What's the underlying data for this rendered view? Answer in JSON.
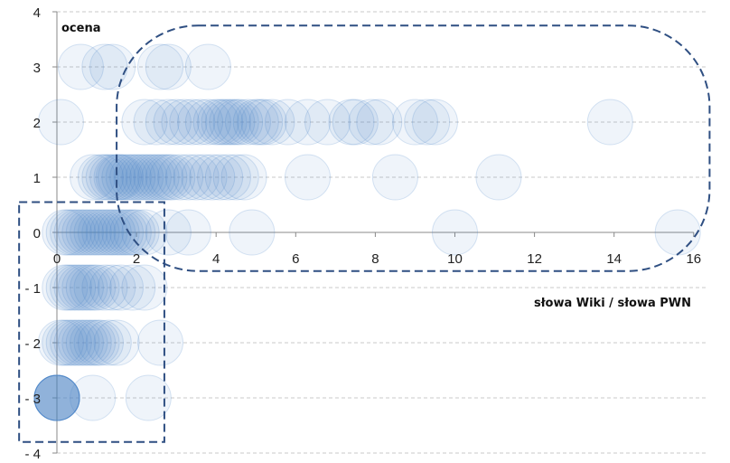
{
  "chart_data": {
    "type": "scatter",
    "title": "",
    "xlabel": "słowa Wiki / słowa PWN",
    "ylabel": "ocena",
    "xlim": [
      0,
      16
    ],
    "ylim": [
      -4,
      4
    ],
    "x_ticks": [
      "0",
      "2",
      "4",
      "6",
      "8",
      "10",
      "12",
      "14",
      "16"
    ],
    "y_ticks": [
      "4",
      "3",
      "2",
      "1",
      "0",
      "-1",
      "-2",
      "-3",
      "-4"
    ],
    "grid": "horizontal dashed",
    "marker_color": "#4a86c8",
    "series": [
      {
        "points": [
          [
            0.6,
            3
          ],
          [
            1.2,
            3
          ],
          [
            1.4,
            3
          ],
          [
            2.6,
            3
          ],
          [
            2.8,
            3
          ],
          [
            3.8,
            3
          ],
          [
            0.1,
            2
          ],
          [
            2.2,
            2
          ],
          [
            2.5,
            2
          ],
          [
            2.8,
            2
          ],
          [
            3.0,
            2
          ],
          [
            3.2,
            2
          ],
          [
            3.4,
            2
          ],
          [
            3.6,
            2
          ],
          [
            3.8,
            2
          ],
          [
            4.0,
            2
          ],
          [
            4.1,
            2
          ],
          [
            4.2,
            2
          ],
          [
            4.3,
            2
          ],
          [
            4.4,
            2
          ],
          [
            4.5,
            2
          ],
          [
            4.6,
            2
          ],
          [
            4.8,
            2
          ],
          [
            5.0,
            2
          ],
          [
            5.1,
            2
          ],
          [
            5.2,
            2
          ],
          [
            5.4,
            2
          ],
          [
            5.8,
            2
          ],
          [
            6.3,
            2
          ],
          [
            6.8,
            2
          ],
          [
            7.4,
            2
          ],
          [
            7.5,
            2
          ],
          [
            7.9,
            2
          ],
          [
            8.1,
            2
          ],
          [
            9.0,
            2
          ],
          [
            9.3,
            2
          ],
          [
            9.5,
            2
          ],
          [
            13.9,
            2
          ],
          [
            0.9,
            1
          ],
          [
            1.1,
            1
          ],
          [
            1.2,
            1
          ],
          [
            1.3,
            1
          ],
          [
            1.4,
            1
          ],
          [
            1.5,
            1
          ],
          [
            1.55,
            1
          ],
          [
            1.6,
            1
          ],
          [
            1.7,
            1
          ],
          [
            1.8,
            1
          ],
          [
            1.9,
            1
          ],
          [
            2.0,
            1
          ],
          [
            2.1,
            1
          ],
          [
            2.2,
            1
          ],
          [
            2.3,
            1
          ],
          [
            2.4,
            1
          ],
          [
            2.5,
            1
          ],
          [
            2.6,
            1
          ],
          [
            2.7,
            1
          ],
          [
            2.8,
            1
          ],
          [
            2.9,
            1
          ],
          [
            3.1,
            1
          ],
          [
            3.3,
            1
          ],
          [
            3.5,
            1
          ],
          [
            3.7,
            1
          ],
          [
            3.9,
            1
          ],
          [
            4.1,
            1
          ],
          [
            4.3,
            1
          ],
          [
            4.5,
            1
          ],
          [
            4.7,
            1
          ],
          [
            6.3,
            1
          ],
          [
            8.5,
            1
          ],
          [
            11.1,
            1
          ],
          [
            0.2,
            0
          ],
          [
            0.3,
            0
          ],
          [
            0.4,
            0
          ],
          [
            0.5,
            0
          ],
          [
            0.6,
            0
          ],
          [
            0.7,
            0
          ],
          [
            0.8,
            0
          ],
          [
            0.9,
            0
          ],
          [
            1.0,
            0
          ],
          [
            1.1,
            0
          ],
          [
            1.2,
            0
          ],
          [
            1.3,
            0
          ],
          [
            1.4,
            0
          ],
          [
            1.5,
            0
          ],
          [
            1.6,
            0
          ],
          [
            1.7,
            0
          ],
          [
            1.8,
            0
          ],
          [
            1.9,
            0
          ],
          [
            2.0,
            0
          ],
          [
            2.2,
            0
          ],
          [
            2.8,
            0
          ],
          [
            3.3,
            0
          ],
          [
            4.9,
            0
          ],
          [
            10.0,
            0
          ],
          [
            15.6,
            0
          ],
          [
            0.2,
            -1
          ],
          [
            0.3,
            -1
          ],
          [
            0.4,
            -1
          ],
          [
            0.5,
            -1
          ],
          [
            0.6,
            -1
          ],
          [
            0.7,
            -1
          ],
          [
            0.8,
            -1
          ],
          [
            0.9,
            -1
          ],
          [
            1.0,
            -1
          ],
          [
            1.2,
            -1
          ],
          [
            1.4,
            -1
          ],
          [
            1.6,
            -1
          ],
          [
            1.9,
            -1
          ],
          [
            2.2,
            -1
          ],
          [
            0.1,
            -2
          ],
          [
            0.2,
            -2
          ],
          [
            0.3,
            -2
          ],
          [
            0.4,
            -2
          ],
          [
            0.5,
            -2
          ],
          [
            0.6,
            -2
          ],
          [
            0.7,
            -2
          ],
          [
            0.8,
            -2
          ],
          [
            0.9,
            -2
          ],
          [
            1.0,
            -2
          ],
          [
            1.1,
            -2
          ],
          [
            1.3,
            -2
          ],
          [
            1.5,
            -2
          ],
          [
            2.6,
            -2
          ],
          [
            0.0,
            -3
          ],
          [
            0.0,
            -3
          ],
          [
            0.0,
            -3
          ],
          [
            0.0,
            -3
          ],
          [
            0.0,
            -3
          ],
          [
            0.0,
            -3
          ],
          [
            0.0,
            -3
          ],
          [
            0.0,
            -3
          ],
          [
            0.0,
            -3
          ],
          [
            0.0,
            -3
          ],
          [
            0.9,
            -3
          ],
          [
            2.3,
            -3
          ]
        ]
      }
    ],
    "annotations": [
      {
        "type": "dashed-rounded-region",
        "x_range": [
          1.5,
          16.4
        ],
        "y_range": [
          -0.7,
          3.75
        ]
      },
      {
        "type": "dashed-rectangle",
        "x_range": [
          -0.95,
          2.7
        ],
        "y_range": [
          -3.8,
          0.55
        ]
      }
    ]
  }
}
